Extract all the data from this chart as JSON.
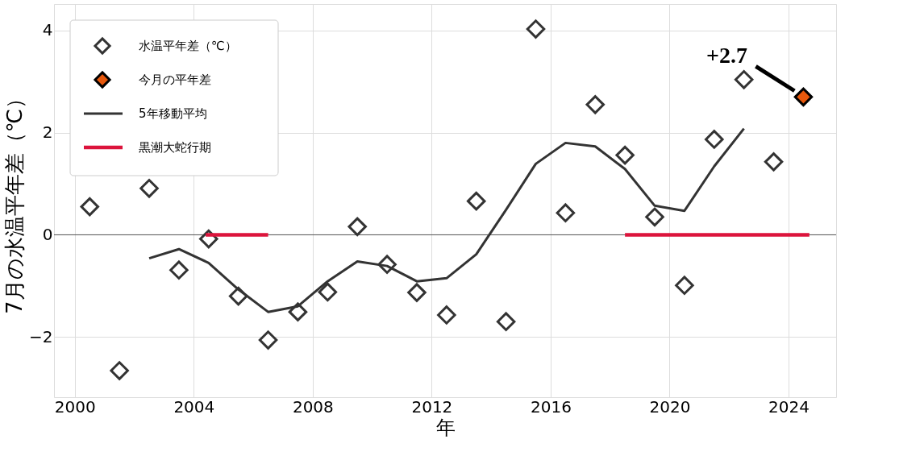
{
  "chart_data": {
    "xlabel": "年",
    "ylabel": "7月の水温平年差（℃）",
    "type": "scatter",
    "xlim": [
      1999.3,
      2025.6
    ],
    "ylim": [
      -3.18,
      4.52
    ],
    "xticks": [
      2000,
      2004,
      2008,
      2012,
      2016,
      2020,
      2024
    ],
    "yticks": [
      -2,
      0,
      2,
      4
    ],
    "grid": true,
    "legend": "top left",
    "ref_lines": [
      {
        "axis": "y",
        "value": 0,
        "color": "#555555"
      }
    ],
    "annotations": [
      {
        "text": "+2.7",
        "x": 2024.5,
        "y": 2.7
      }
    ],
    "series": [
      {
        "name": "水温平年差（℃）",
        "marker": "diamond",
        "color": "#333333",
        "x": [
          2000.5,
          2001.5,
          2002.5,
          2003.5,
          2004.5,
          2005.5,
          2006.5,
          2007.5,
          2008.5,
          2009.5,
          2010.5,
          2011.5,
          2012.5,
          2013.5,
          2014.5,
          2015.5,
          2016.5,
          2017.5,
          2018.5,
          2019.5,
          2020.5,
          2021.5,
          2022.5,
          2023.5
        ],
        "values": [
          0.55,
          -2.66,
          0.91,
          -0.69,
          -0.08,
          -1.2,
          -2.06,
          -1.51,
          -1.12,
          0.16,
          -0.58,
          -1.13,
          -1.57,
          0.66,
          -1.7,
          4.03,
          0.43,
          2.55,
          1.56,
          0.35,
          -0.99,
          1.87,
          3.04,
          1.43
        ]
      },
      {
        "name": "今月の平年差",
        "marker": "diamond",
        "color": "#e8580c",
        "x": [
          2024.5
        ],
        "values": [
          2.7
        ]
      },
      {
        "name": "5年移動平均",
        "type": "line",
        "color": "#333333",
        "x": [
          2002.5,
          2003.5,
          2004.5,
          2005.5,
          2006.5,
          2007.5,
          2008.5,
          2009.5,
          2010.5,
          2011.5,
          2012.5,
          2013.5,
          2014.5,
          2015.5,
          2016.5,
          2017.5,
          2018.5,
          2019.5,
          2020.5,
          2021.5,
          2022.5
        ],
        "values": [
          -0.46,
          -0.28,
          -0.55,
          -1.07,
          -1.51,
          -1.4,
          -0.91,
          -0.52,
          -0.61,
          -0.91,
          -0.85,
          -0.38,
          0.49,
          1.39,
          1.8,
          1.73,
          1.29,
          0.57,
          0.47,
          1.34,
          2.08
        ]
      },
      {
        "name": "黒潮大蛇行期",
        "type": "line",
        "color": "#dc143c",
        "x": [
          2004.4,
          2006.5,
          2012.5,
          2018.5,
          2024.7
        ],
        "values": [
          0,
          0,
          null,
          0,
          0
        ]
      }
    ]
  }
}
